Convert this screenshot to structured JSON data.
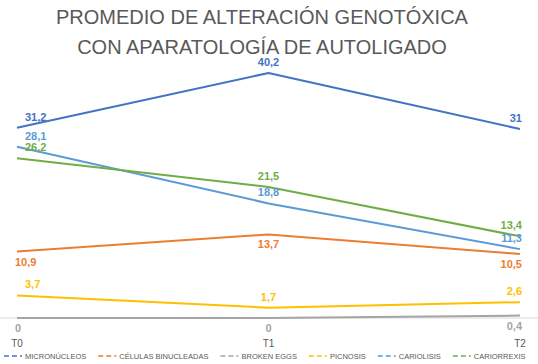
{
  "chart_data": {
    "type": "line",
    "title": "PROMEDIO DE ALTERACIÓN GENOTÓXICA CON APARATOLOGÍA DE AUTOLIGADO",
    "categories": [
      "T0",
      "T1",
      "T2"
    ],
    "ylim": [
      0,
      42
    ],
    "tick_labels": "x",
    "grid": false,
    "legend": "bottom",
    "data_labels": true,
    "series": [
      {
        "name": "MICRONÚCLEOS",
        "color": "#4472c4",
        "line_style": "solid",
        "values": [
          31.2,
          40.2,
          31
        ],
        "value_labels": [
          "31,2",
          "40,2",
          "31"
        ]
      },
      {
        "name": "CÉLULAS BINUCLEADAS",
        "color": "#ed7d31",
        "line_style": "solid",
        "values": [
          10.9,
          13.7,
          10.5
        ],
        "value_labels": [
          "10,9",
          "13,7",
          "10,5"
        ]
      },
      {
        "name": "BROKEN EGGS",
        "color": "#a5a5a5",
        "line_style": "solid",
        "values": [
          0,
          0,
          0.4
        ],
        "value_labels": [
          "0",
          "0",
          "0,4"
        ]
      },
      {
        "name": "PICNOSIS",
        "color": "#ffc000",
        "line_style": "solid",
        "values": [
          3.7,
          1.7,
          2.6
        ],
        "value_labels": [
          "3,7",
          "1,7",
          "2,6"
        ]
      },
      {
        "name": "CARIOLISIS",
        "color": "#5b9bd5",
        "line_style": "solid",
        "values": [
          28.1,
          18.8,
          11.3
        ],
        "value_labels": [
          "28,1",
          "18,8",
          "11,3"
        ]
      },
      {
        "name": "CARIORREXIS",
        "color": "#70ad47",
        "line_style": "solid",
        "values": [
          26.2,
          21.5,
          13.4
        ],
        "value_labels": [
          "26,2",
          "21,5",
          "13,4"
        ]
      }
    ]
  }
}
